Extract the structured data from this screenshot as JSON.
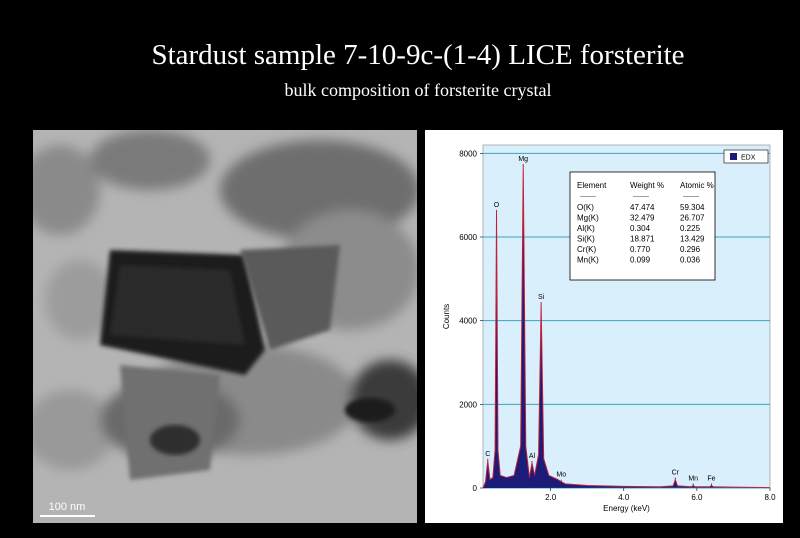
{
  "title": "Stardust sample  7-10-9c-(1-4)    LICE forsterite",
  "subtitle": "bulk composition of forsterite  crystal",
  "image": {
    "scale_label": "100 nm"
  },
  "chart_data": {
    "type": "area",
    "xlabel": "Energy (keV)",
    "ylabel": "Counts",
    "xlim": [
      0.15,
      8.0
    ],
    "ylim": [
      0,
      8200
    ],
    "xticks": [
      {
        "value": 2,
        "label": "2.0"
      },
      {
        "value": 4,
        "label": "4.0"
      },
      {
        "value": 6,
        "label": "6.0"
      },
      {
        "value": 8,
        "label": "8.0"
      }
    ],
    "yticks": [
      0,
      2000,
      4000,
      6000,
      8000
    ],
    "grid": true,
    "legend": "top-right",
    "x": [
      0.15,
      0.22,
      0.28,
      0.34,
      0.42,
      0.48,
      0.52,
      0.56,
      0.62,
      0.8,
      1.0,
      1.18,
      1.25,
      1.32,
      1.42,
      1.49,
      1.56,
      1.67,
      1.74,
      1.81,
      1.95,
      2.2,
      2.29,
      2.4,
      3.0,
      4.0,
      5.0,
      5.35,
      5.41,
      5.47,
      5.85,
      5.9,
      5.95,
      6.35,
      6.4,
      6.45,
      7.0,
      8.0
    ],
    "series": [
      {
        "name": "EDX",
        "color": "#1c1c78",
        "values": [
          0,
          150,
          650,
          200,
          250,
          900,
          6600,
          900,
          300,
          250,
          300,
          1000,
          7700,
          1000,
          250,
          600,
          300,
          800,
          4400,
          700,
          300,
          200,
          150,
          100,
          60,
          40,
          30,
          50,
          200,
          50,
          30,
          60,
          30,
          30,
          60,
          30,
          20,
          10
        ]
      }
    ],
    "annotations": [
      {
        "text": "C",
        "x": 0.28,
        "y": 650
      },
      {
        "text": "O",
        "x": 0.52,
        "y": 6600
      },
      {
        "text": "Mg",
        "x": 1.25,
        "y": 7700
      },
      {
        "text": "Al",
        "x": 1.49,
        "y": 600
      },
      {
        "text": "Si",
        "x": 1.74,
        "y": 4400
      },
      {
        "text": "Mo",
        "x": 2.29,
        "y": 150
      },
      {
        "text": "Cr",
        "x": 5.41,
        "y": 200
      },
      {
        "text": "Mn",
        "x": 5.9,
        "y": 60
      },
      {
        "text": "Fe",
        "x": 6.4,
        "y": 60
      }
    ],
    "table": {
      "columns": [
        "Element",
        "Weight %",
        "Atomic %"
      ],
      "separator": "--------",
      "rows": [
        [
          "O(K)",
          "47.474",
          "59.304"
        ],
        [
          "Mg(K)",
          "32.479",
          "26.707"
        ],
        [
          "Al(K)",
          "0.304",
          "0.225"
        ],
        [
          "Si(K)",
          "18.871",
          "13.429"
        ],
        [
          "Cr(K)",
          "0.770",
          "0.296"
        ],
        [
          "Mn(K)",
          "0.099",
          "0.036"
        ]
      ]
    }
  }
}
